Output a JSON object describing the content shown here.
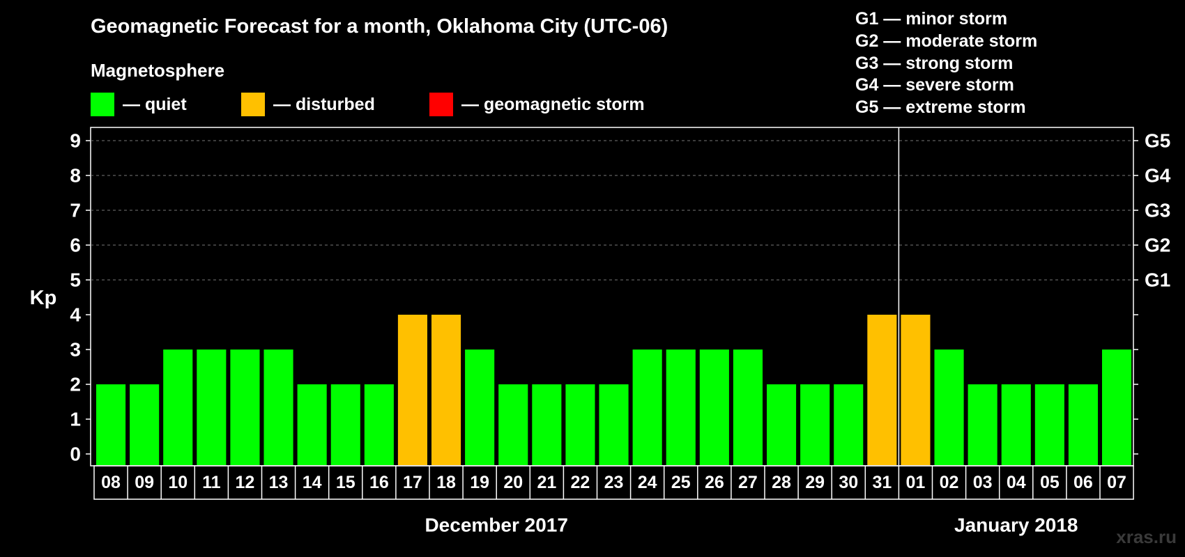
{
  "title": "Geomagnetic Forecast for a month, Oklahoma City (UTC-06)",
  "subtitle": "Magnetosphere",
  "legend": [
    {
      "label": "— quiet",
      "color": "#00ff00"
    },
    {
      "label": "— disturbed",
      "color": "#ffc000"
    },
    {
      "label": "— geomagnetic storm",
      "color": "#ff0000"
    }
  ],
  "g_levels": [
    "G1 — minor storm",
    "G2 — moderate storm",
    "G3 — strong storm",
    "G4 — severe storm",
    "G5 — extreme storm"
  ],
  "watermark": "xras.ru",
  "chart_data": {
    "type": "bar",
    "title": "Geomagnetic Forecast for a month, Oklahoma City (UTC-06)",
    "ylabel": "Kp",
    "ylim": [
      0,
      9
    ],
    "yticks": [
      "0",
      "1",
      "2",
      "3",
      "4",
      "5",
      "6",
      "7",
      "8",
      "9"
    ],
    "right_ticks": [
      {
        "kp": 5,
        "label": "G1"
      },
      {
        "kp": 6,
        "label": "G2"
      },
      {
        "kp": 7,
        "label": "G3"
      },
      {
        "kp": 8,
        "label": "G4"
      },
      {
        "kp": 9,
        "label": "G5"
      }
    ],
    "categories": [
      "08",
      "09",
      "10",
      "11",
      "12",
      "13",
      "14",
      "15",
      "16",
      "17",
      "18",
      "19",
      "20",
      "21",
      "22",
      "23",
      "24",
      "25",
      "26",
      "27",
      "28",
      "29",
      "30",
      "31",
      "01",
      "02",
      "03",
      "04",
      "05",
      "06",
      "07"
    ],
    "values": [
      2,
      2,
      3,
      3,
      3,
      3,
      2,
      2,
      2,
      4,
      4,
      3,
      2,
      2,
      2,
      2,
      3,
      3,
      3,
      3,
      2,
      2,
      2,
      4,
      4,
      3,
      2,
      2,
      2,
      2,
      3
    ],
    "colors": {
      "quiet": "#00ff00",
      "disturbed": "#ffc000",
      "storm": "#ff0000"
    },
    "months": [
      {
        "label": "December 2017",
        "start_index": 0,
        "end_index": 23
      },
      {
        "label": "January 2018",
        "start_index": 24,
        "end_index": 30
      }
    ]
  }
}
